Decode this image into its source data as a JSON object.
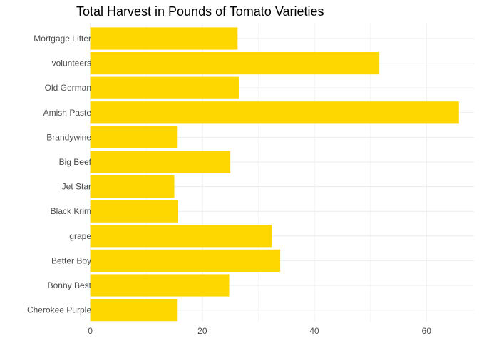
{
  "chart_data": {
    "type": "bar",
    "orientation": "horizontal",
    "title": "Total Harvest in Pounds of Tomato Varieties",
    "xlabel": "",
    "ylabel": "",
    "categories": [
      "Mortgage Lifter",
      "volunteers",
      "Old German",
      "Amish Paste",
      "Brandywine",
      "Big Beef",
      "Jet Star",
      "Black Krim",
      "grape",
      "Better Boy",
      "Bonny Best",
      "Cherokee Purple"
    ],
    "values": [
      26.3,
      51.6,
      26.6,
      65.8,
      15.6,
      25.0,
      15.0,
      15.7,
      32.4,
      33.9,
      24.8,
      15.6
    ],
    "xlim": [
      -2.5,
      68.5
    ],
    "x_ticks": [
      0,
      20,
      40,
      60
    ],
    "x_tick_labels": [
      "0",
      "20",
      "40",
      "60"
    ],
    "grid": true,
    "bar_color": "#FFD700",
    "legend": "none"
  }
}
